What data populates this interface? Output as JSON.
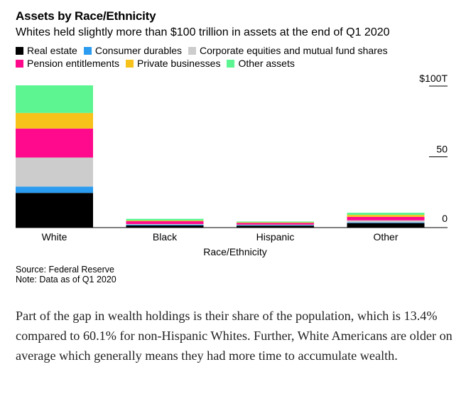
{
  "title": "Assets by Race/Ethnicity",
  "subtitle": "Whites held slightly more than $100 trillion in assets at the end of Q1 2020",
  "source": "Source: Federal Reserve",
  "note": "Note: Data as of Q1 2020",
  "paragraph": "Part of the gap in wealth holdings is their share of the population, which is 13.4% compared to 60.1% for non-Hispanic Whites. Further, White Americans are older on average which generally means they had more time to accumulate wealth.",
  "chart_data": {
    "type": "bar",
    "stacked": true,
    "title": "Assets by Race/Ethnicity",
    "subtitle": "Whites held slightly more than $100 trillion in assets at the end of Q1 2020",
    "xlabel": "Race/Ethnicity",
    "ylabel": "",
    "ylim": [
      0,
      100
    ],
    "y_ticks": [
      {
        "value": 0,
        "label": "0"
      },
      {
        "value": 50,
        "label": "50"
      },
      {
        "value": 100,
        "label": "$100T"
      }
    ],
    "y_axis_side": "right",
    "legend_position": "top-left",
    "categories": [
      "White",
      "Black",
      "Hispanic",
      "Other"
    ],
    "series": [
      {
        "name": "Real estate",
        "color": "#000000",
        "values": [
          24.5,
          1.5,
          1.4,
          3.2
        ]
      },
      {
        "name": "Consumer durables",
        "color": "#2b9cf0",
        "values": [
          4.5,
          0.5,
          0.4,
          0.5
        ]
      },
      {
        "name": "Corporate equities and mutual fund shares",
        "color": "#cccccc",
        "values": [
          20.5,
          0.5,
          0.3,
          1.4
        ]
      },
      {
        "name": "Pension entitlements",
        "color": "#ff0a8c",
        "values": [
          20.5,
          2.0,
          1.2,
          2.5
        ]
      },
      {
        "name": "Private businesses",
        "color": "#f7c21a",
        "values": [
          11.0,
          0.5,
          0.4,
          1.4
        ]
      },
      {
        "name": "Other assets",
        "color": "#5cf591",
        "values": [
          19.5,
          1.2,
          0.6,
          1.5
        ]
      }
    ]
  }
}
